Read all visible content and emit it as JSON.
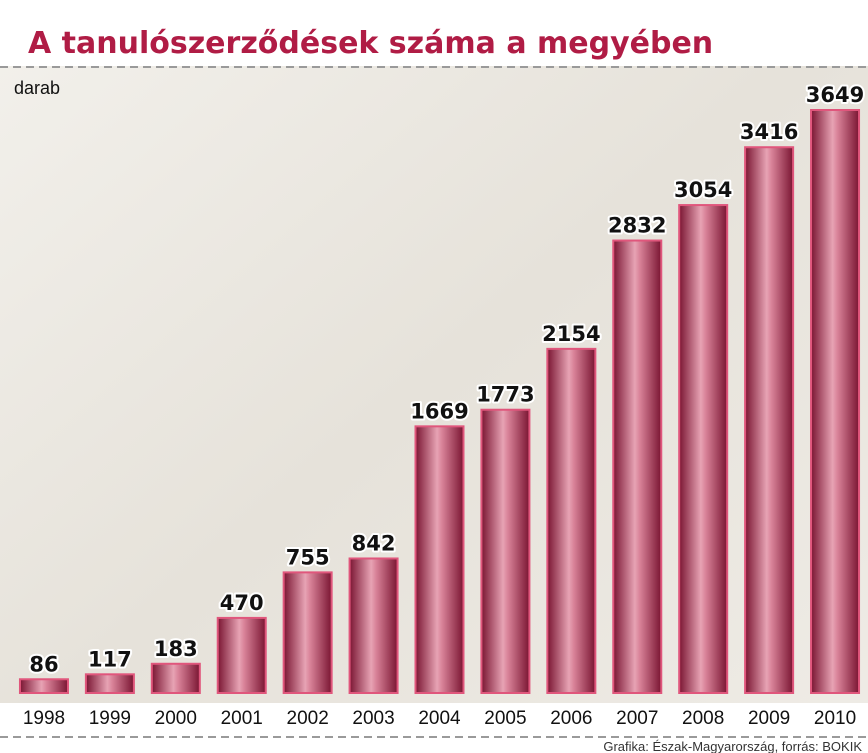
{
  "chart_data": {
    "type": "bar",
    "title": "A tanulószerződések száma a megyében",
    "unit_label": "darab",
    "source": "Grafika: Észak-Magyarország, forrás: BOKIK",
    "categories": [
      "1998",
      "1999",
      "2000",
      "2001",
      "2002",
      "2003",
      "2004",
      "2005",
      "2006",
      "2007",
      "2008",
      "2009",
      "2010"
    ],
    "values": [
      86,
      117,
      183,
      470,
      755,
      842,
      1669,
      1773,
      2154,
      2832,
      3054,
      3416,
      3649
    ],
    "color": "#a3244a"
  }
}
